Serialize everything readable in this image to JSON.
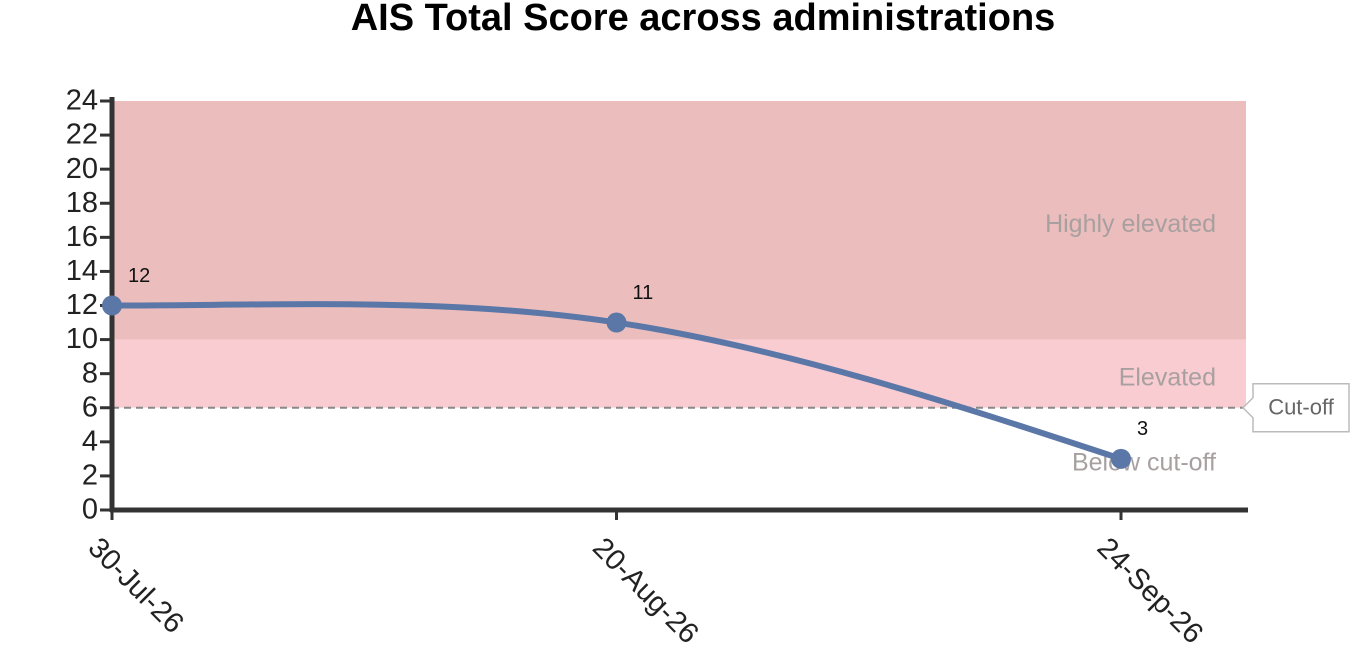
{
  "chart_data": {
    "type": "line",
    "title": "AIS Total Score across administrations",
    "categories": [
      "30-Jul-26",
      "20-Aug-26",
      "24-Sep-26"
    ],
    "values": [
      12,
      11,
      3
    ],
    "color": "#5b77a7",
    "ylim": [
      0,
      24
    ],
    "yticks": [
      0,
      2,
      4,
      6,
      8,
      10,
      12,
      14,
      16,
      18,
      20,
      22,
      24
    ],
    "bands": [
      {
        "name": "Highly elevated",
        "from": 10,
        "to": 24,
        "color": "#ecbdbd"
      },
      {
        "name": "Elevated",
        "from": 6,
        "to": 10,
        "color": "#f8ccd1"
      },
      {
        "name": "Below cut-off",
        "from": 0,
        "to": 6,
        "color": "#ffffff"
      }
    ],
    "cutoff": {
      "label": "Cut-off",
      "value": 6
    }
  }
}
